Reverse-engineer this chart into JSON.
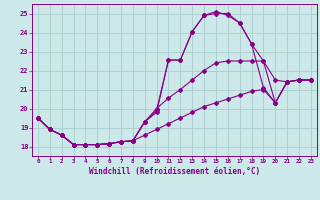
{
  "xlabel": "Windchill (Refroidissement éolien,°C)",
  "ylabel": "",
  "background_color": "#cce8e8",
  "grid_color": "#aacccc",
  "line_color": "#880088",
  "xlim": [
    -0.5,
    23.5
  ],
  "ylim": [
    17.5,
    25.5
  ],
  "yticks": [
    18,
    19,
    20,
    21,
    22,
    23,
    24,
    25
  ],
  "xticks": [
    0,
    1,
    2,
    3,
    4,
    5,
    6,
    7,
    8,
    9,
    10,
    11,
    12,
    13,
    14,
    15,
    16,
    17,
    18,
    19,
    20,
    21,
    22,
    23
  ],
  "line1_x": [
    0,
    1,
    2,
    3,
    4,
    5,
    6,
    7,
    8,
    9,
    10,
    11,
    12,
    13,
    14,
    15,
    16,
    17,
    18,
    19,
    20,
    21,
    22,
    23
  ],
  "line1_y": [
    19.5,
    18.9,
    18.6,
    18.1,
    18.1,
    18.1,
    18.15,
    18.25,
    18.3,
    19.3,
    19.8,
    22.55,
    22.55,
    24.05,
    24.9,
    25.1,
    24.9,
    24.5,
    23.4,
    22.5,
    21.5,
    21.4,
    21.5,
    21.5
  ],
  "line2_x": [
    0,
    1,
    2,
    3,
    4,
    5,
    6,
    7,
    8,
    9,
    10,
    11,
    12,
    13,
    14,
    15,
    16,
    17,
    18,
    19,
    20,
    21,
    22,
    23
  ],
  "line2_y": [
    19.5,
    18.9,
    18.6,
    18.1,
    18.1,
    18.1,
    18.15,
    18.25,
    18.3,
    19.3,
    19.9,
    22.55,
    22.55,
    24.05,
    24.9,
    25.0,
    25.0,
    24.5,
    23.4,
    21.1,
    20.3,
    21.4,
    21.5,
    21.5
  ],
  "line3_x": [
    0,
    1,
    2,
    3,
    4,
    5,
    6,
    7,
    8,
    9,
    10,
    11,
    12,
    13,
    14,
    15,
    16,
    17,
    18,
    19,
    20,
    21,
    22,
    23
  ],
  "line3_y": [
    19.5,
    18.9,
    18.6,
    18.1,
    18.1,
    18.1,
    18.15,
    18.25,
    18.3,
    19.3,
    20.0,
    20.55,
    21.0,
    21.5,
    22.0,
    22.4,
    22.5,
    22.5,
    22.5,
    22.5,
    20.3,
    21.4,
    21.5,
    21.5
  ],
  "line4_x": [
    0,
    1,
    2,
    3,
    4,
    5,
    6,
    7,
    8,
    9,
    10,
    11,
    12,
    13,
    14,
    15,
    16,
    17,
    18,
    19,
    20,
    21,
    22,
    23
  ],
  "line4_y": [
    19.5,
    18.9,
    18.6,
    18.1,
    18.1,
    18.1,
    18.15,
    18.25,
    18.3,
    18.6,
    18.9,
    19.2,
    19.5,
    19.8,
    20.1,
    20.3,
    20.5,
    20.7,
    20.9,
    21.0,
    20.3,
    21.4,
    21.5,
    21.5
  ]
}
